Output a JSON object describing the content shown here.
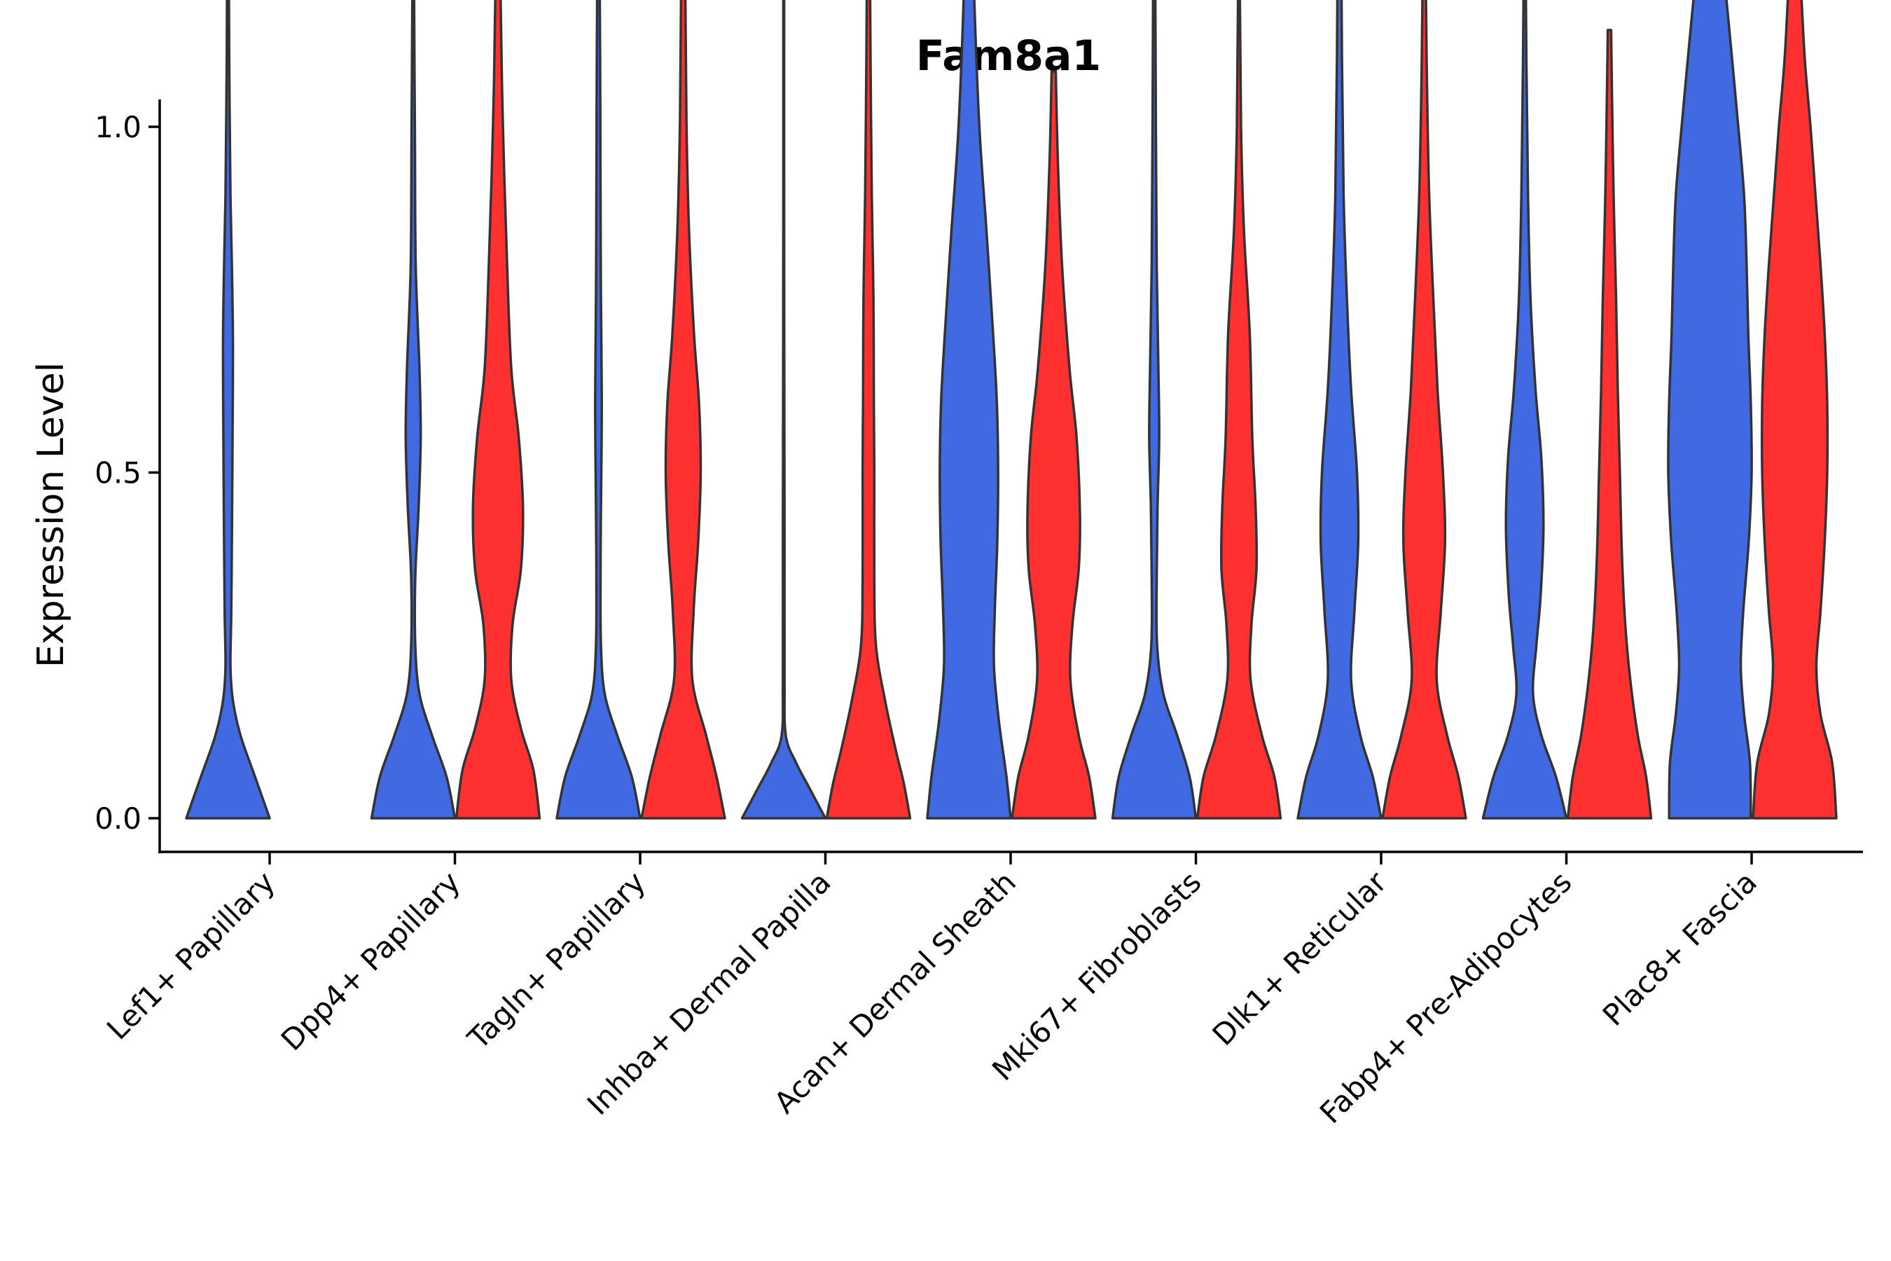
{
  "chart_data": {
    "type": "violin",
    "title": "Fam8a1",
    "xlabel": "",
    "ylabel": "Expression Level",
    "ylim": [
      -0.1,
      2.08
    ],
    "yticks": [
      "0.0",
      "0.5",
      "1.0",
      "1.5",
      "2.0"
    ],
    "grid": false,
    "legend": "none",
    "series": [
      {
        "name": "group1",
        "color": "#4169E1"
      },
      {
        "name": "group2",
        "color": "#FF3030"
      }
    ],
    "categories": [
      "Lef1+ Papillary",
      "Dpp4+ Papillary",
      "Tagln+ Papillary",
      "Inhba+ Dermal Papilla",
      "Acan+ Dermal Sheath",
      "Mki67+ Fibroblasts",
      "Dlk1+ Reticular",
      "Fabp4+ Pre-Adipocytes",
      "Plac8+ Fascia"
    ],
    "violins": [
      {
        "category": "Lef1+ Papillary",
        "series": "group1",
        "max": 1.74,
        "profile": [
          [
            0,
            1.0
          ],
          [
            0.06,
            0.65
          ],
          [
            0.12,
            0.3
          ],
          [
            0.17,
            0.12
          ],
          [
            0.22,
            0.06
          ],
          [
            0.3,
            0.08
          ],
          [
            0.45,
            0.1
          ],
          [
            0.55,
            0.11
          ],
          [
            0.68,
            0.12
          ],
          [
            0.78,
            0.1
          ],
          [
            0.9,
            0.06
          ],
          [
            1.1,
            0.03
          ],
          [
            1.3,
            0.015
          ],
          [
            1.5,
            0.008
          ],
          [
            1.74,
            0.005
          ]
        ]
      },
      {
        "category": "Dpp4+ Papillary",
        "series": "group1",
        "max": 1.85,
        "profile": [
          [
            0,
            1.0
          ],
          [
            0.06,
            0.8
          ],
          [
            0.12,
            0.45
          ],
          [
            0.18,
            0.15
          ],
          [
            0.25,
            0.05
          ],
          [
            0.35,
            0.05
          ],
          [
            0.45,
            0.13
          ],
          [
            0.55,
            0.18
          ],
          [
            0.65,
            0.15
          ],
          [
            0.8,
            0.06
          ],
          [
            1.0,
            0.04
          ],
          [
            1.2,
            0.02
          ],
          [
            1.5,
            0.01
          ],
          [
            1.85,
            0.005
          ]
        ]
      },
      {
        "category": "Dpp4+ Papillary",
        "series": "group2",
        "max": 1.95,
        "profile": [
          [
            0,
            1.0
          ],
          [
            0.07,
            0.85
          ],
          [
            0.13,
            0.55
          ],
          [
            0.2,
            0.32
          ],
          [
            0.28,
            0.35
          ],
          [
            0.36,
            0.55
          ],
          [
            0.45,
            0.6
          ],
          [
            0.55,
            0.5
          ],
          [
            0.65,
            0.32
          ],
          [
            0.8,
            0.22
          ],
          [
            1.0,
            0.12
          ],
          [
            1.2,
            0.06
          ],
          [
            1.5,
            0.03
          ],
          [
            1.95,
            0.005
          ]
        ]
      },
      {
        "category": "Tagln+ Papillary",
        "series": "group1",
        "max": 1.54,
        "profile": [
          [
            0,
            1.0
          ],
          [
            0.06,
            0.8
          ],
          [
            0.12,
            0.45
          ],
          [
            0.18,
            0.15
          ],
          [
            0.25,
            0.06
          ],
          [
            0.35,
            0.05
          ],
          [
            0.45,
            0.06
          ],
          [
            0.6,
            0.08
          ],
          [
            0.75,
            0.06
          ],
          [
            0.9,
            0.05
          ],
          [
            1.1,
            0.04
          ],
          [
            1.3,
            0.02
          ],
          [
            1.54,
            0.005
          ]
        ]
      },
      {
        "category": "Tagln+ Papillary",
        "series": "group2",
        "max": 1.51,
        "profile": [
          [
            0,
            1.0
          ],
          [
            0.06,
            0.8
          ],
          [
            0.12,
            0.55
          ],
          [
            0.2,
            0.22
          ],
          [
            0.3,
            0.25
          ],
          [
            0.4,
            0.36
          ],
          [
            0.5,
            0.42
          ],
          [
            0.6,
            0.38
          ],
          [
            0.7,
            0.26
          ],
          [
            0.85,
            0.14
          ],
          [
            1.0,
            0.08
          ],
          [
            1.2,
            0.05
          ],
          [
            1.51,
            0.005
          ]
        ]
      },
      {
        "category": "Inhba+ Dermal Papilla",
        "series": "group1",
        "max": 1.71,
        "profile": [
          [
            0,
            1.0
          ],
          [
            0.04,
            0.65
          ],
          [
            0.08,
            0.3
          ],
          [
            0.12,
            0.05
          ],
          [
            0.2,
            0.02
          ],
          [
            0.4,
            0.02
          ],
          [
            0.6,
            0.015
          ],
          [
            0.9,
            0.01
          ],
          [
            1.2,
            0.01
          ],
          [
            1.71,
            0.005
          ]
        ]
      },
      {
        "category": "Inhba+ Dermal Papilla",
        "series": "group2",
        "max": 1.45,
        "profile": [
          [
            0,
            1.0
          ],
          [
            0.05,
            0.85
          ],
          [
            0.1,
            0.65
          ],
          [
            0.17,
            0.4
          ],
          [
            0.25,
            0.18
          ],
          [
            0.35,
            0.14
          ],
          [
            0.5,
            0.14
          ],
          [
            0.6,
            0.13
          ],
          [
            0.75,
            0.12
          ],
          [
            0.9,
            0.08
          ],
          [
            1.1,
            0.05
          ],
          [
            1.3,
            0.03
          ],
          [
            1.45,
            0.005
          ]
        ]
      },
      {
        "category": "Acan+ Dermal Sheath",
        "series": "group1",
        "max": 1.37,
        "profile": [
          [
            0,
            1.0
          ],
          [
            0.06,
            0.9
          ],
          [
            0.14,
            0.72
          ],
          [
            0.22,
            0.6
          ],
          [
            0.3,
            0.62
          ],
          [
            0.4,
            0.68
          ],
          [
            0.5,
            0.7
          ],
          [
            0.6,
            0.67
          ],
          [
            0.7,
            0.58
          ],
          [
            0.85,
            0.42
          ],
          [
            1.0,
            0.25
          ],
          [
            1.2,
            0.12
          ],
          [
            1.37,
            0.06
          ]
        ]
      },
      {
        "category": "Acan+ Dermal Sheath",
        "series": "group2",
        "max": 1.08,
        "profile": [
          [
            0,
            1.0
          ],
          [
            0.06,
            0.85
          ],
          [
            0.12,
            0.6
          ],
          [
            0.2,
            0.4
          ],
          [
            0.28,
            0.45
          ],
          [
            0.36,
            0.6
          ],
          [
            0.44,
            0.63
          ],
          [
            0.55,
            0.55
          ],
          [
            0.65,
            0.38
          ],
          [
            0.8,
            0.2
          ],
          [
            0.95,
            0.1
          ],
          [
            1.08,
            0.05
          ]
        ]
      },
      {
        "category": "Mki67+ Fibroblasts",
        "series": "group1",
        "max": 1.7,
        "profile": [
          [
            0,
            1.0
          ],
          [
            0.06,
            0.85
          ],
          [
            0.12,
            0.55
          ],
          [
            0.18,
            0.22
          ],
          [
            0.25,
            0.07
          ],
          [
            0.35,
            0.06
          ],
          [
            0.45,
            0.08
          ],
          [
            0.55,
            0.12
          ],
          [
            0.65,
            0.1
          ],
          [
            0.8,
            0.06
          ],
          [
            1.0,
            0.04
          ],
          [
            1.3,
            0.02
          ],
          [
            1.7,
            0.005
          ]
        ]
      },
      {
        "category": "Mki67+ Fibroblasts",
        "series": "group2",
        "max": 1.46,
        "profile": [
          [
            0,
            1.0
          ],
          [
            0.06,
            0.85
          ],
          [
            0.12,
            0.55
          ],
          [
            0.2,
            0.28
          ],
          [
            0.28,
            0.3
          ],
          [
            0.36,
            0.42
          ],
          [
            0.45,
            0.4
          ],
          [
            0.55,
            0.32
          ],
          [
            0.7,
            0.26
          ],
          [
            0.85,
            0.12
          ],
          [
            1.0,
            0.05
          ],
          [
            1.2,
            0.02
          ],
          [
            1.46,
            0.005
          ]
        ]
      },
      {
        "category": "Dlk1+ Reticular",
        "series": "group1",
        "max": 1.98,
        "profile": [
          [
            0,
            1.0
          ],
          [
            0.06,
            0.8
          ],
          [
            0.12,
            0.5
          ],
          [
            0.2,
            0.28
          ],
          [
            0.3,
            0.36
          ],
          [
            0.4,
            0.45
          ],
          [
            0.5,
            0.42
          ],
          [
            0.62,
            0.28
          ],
          [
            0.75,
            0.18
          ],
          [
            0.9,
            0.1
          ],
          [
            1.1,
            0.06
          ],
          [
            1.4,
            0.03
          ],
          [
            1.7,
            0.015
          ],
          [
            1.98,
            0.005
          ]
        ]
      },
      {
        "category": "Dlk1+ Reticular",
        "series": "group2",
        "max": 1.43,
        "profile": [
          [
            0,
            1.0
          ],
          [
            0.06,
            0.82
          ],
          [
            0.12,
            0.55
          ],
          [
            0.2,
            0.3
          ],
          [
            0.3,
            0.4
          ],
          [
            0.4,
            0.5
          ],
          [
            0.5,
            0.45
          ],
          [
            0.62,
            0.32
          ],
          [
            0.75,
            0.22
          ],
          [
            0.9,
            0.12
          ],
          [
            1.05,
            0.07
          ],
          [
            1.2,
            0.04
          ],
          [
            1.43,
            0.005
          ]
        ]
      },
      {
        "category": "Fabp4+ Pre-Adipocytes",
        "series": "group1",
        "max": 1.39,
        "profile": [
          [
            0,
            1.0
          ],
          [
            0.06,
            0.75
          ],
          [
            0.12,
            0.4
          ],
          [
            0.18,
            0.2
          ],
          [
            0.25,
            0.28
          ],
          [
            0.32,
            0.38
          ],
          [
            0.42,
            0.45
          ],
          [
            0.52,
            0.4
          ],
          [
            0.62,
            0.26
          ],
          [
            0.75,
            0.14
          ],
          [
            0.9,
            0.08
          ],
          [
            1.1,
            0.04
          ],
          [
            1.39,
            0.005
          ]
        ]
      },
      {
        "category": "Fabp4+ Pre-Adipocytes",
        "series": "group2",
        "max": 1.14,
        "profile": [
          [
            0,
            1.0
          ],
          [
            0.06,
            0.88
          ],
          [
            0.12,
            0.68
          ],
          [
            0.2,
            0.5
          ],
          [
            0.28,
            0.38
          ],
          [
            0.38,
            0.3
          ],
          [
            0.5,
            0.25
          ],
          [
            0.62,
            0.2
          ],
          [
            0.75,
            0.16
          ],
          [
            0.9,
            0.1
          ],
          [
            1.05,
            0.06
          ],
          [
            1.14,
            0.04
          ]
        ]
      },
      {
        "category": "Plac8+ Fascia",
        "series": "group1",
        "max": 1.34,
        "profile": [
          [
            0,
            0.98
          ],
          [
            0.08,
            0.96
          ],
          [
            0.15,
            0.82
          ],
          [
            0.22,
            0.74
          ],
          [
            0.3,
            0.8
          ],
          [
            0.4,
            0.93
          ],
          [
            0.5,
            1.0
          ],
          [
            0.6,
            0.98
          ],
          [
            0.7,
            0.92
          ],
          [
            0.8,
            0.88
          ],
          [
            0.9,
            0.82
          ],
          [
            1.0,
            0.68
          ],
          [
            1.15,
            0.45
          ],
          [
            1.25,
            0.28
          ],
          [
            1.34,
            0.08
          ]
        ]
      },
      {
        "category": "Plac8+ Fascia",
        "series": "group2",
        "max": 1.24,
        "profile": [
          [
            0,
            1.0
          ],
          [
            0.08,
            0.9
          ],
          [
            0.15,
            0.62
          ],
          [
            0.22,
            0.52
          ],
          [
            0.3,
            0.62
          ],
          [
            0.4,
            0.72
          ],
          [
            0.5,
            0.78
          ],
          [
            0.6,
            0.78
          ],
          [
            0.7,
            0.72
          ],
          [
            0.8,
            0.62
          ],
          [
            0.9,
            0.5
          ],
          [
            1.0,
            0.38
          ],
          [
            1.1,
            0.24
          ],
          [
            1.24,
            0.12
          ]
        ]
      }
    ]
  }
}
